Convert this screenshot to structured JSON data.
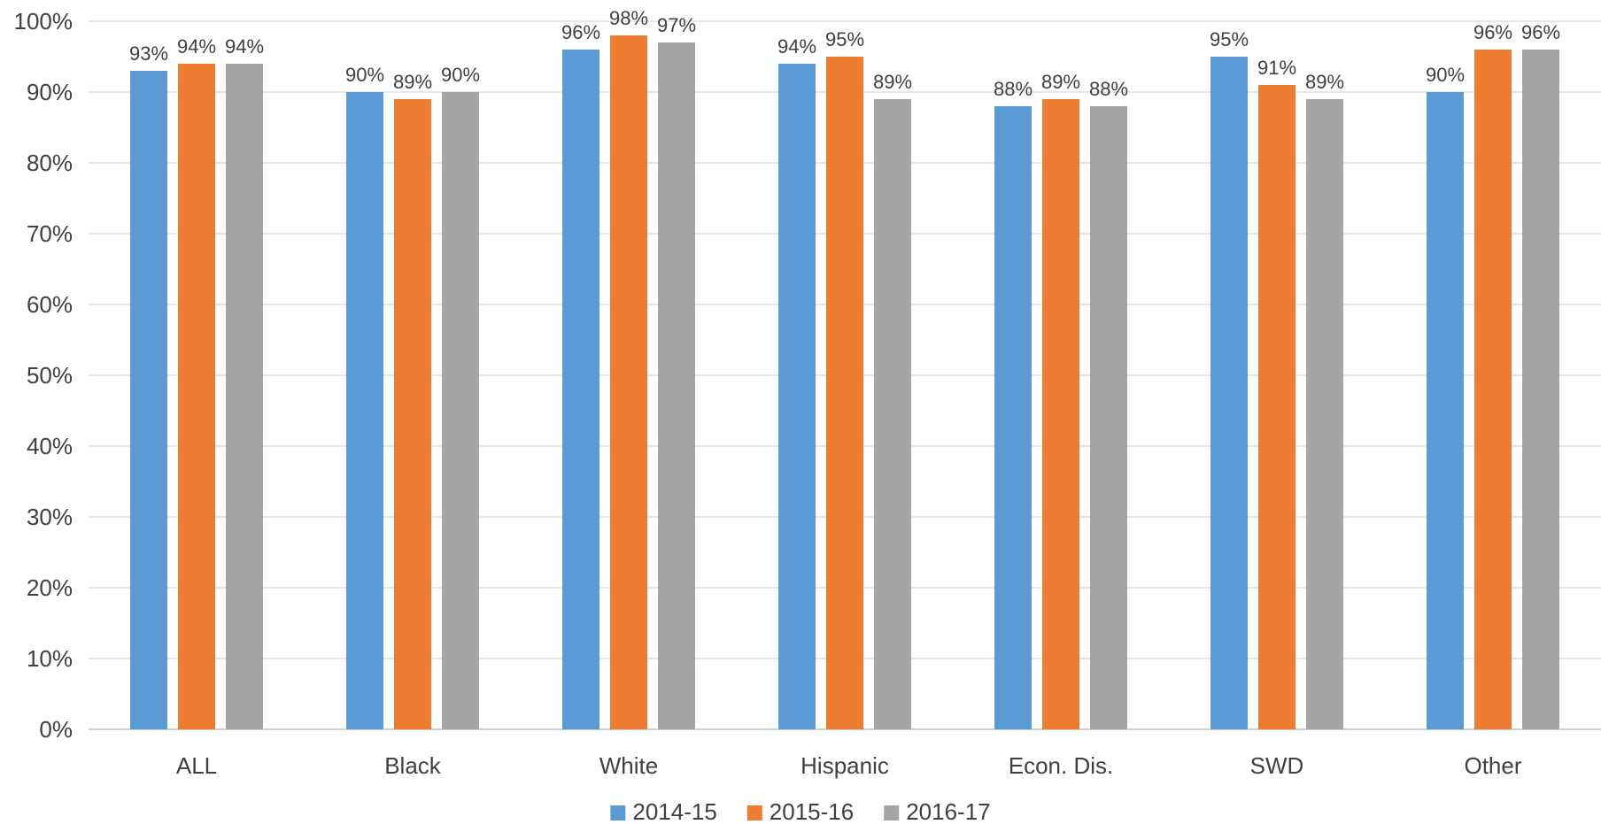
{
  "chart_data": {
    "type": "bar",
    "categories": [
      "ALL",
      "Black",
      "White",
      "Hispanic",
      "Econ. Dis.",
      "SWD",
      "Other"
    ],
    "series": [
      {
        "name": "2014-15",
        "color": "#5B9BD5",
        "values": [
          93,
          90,
          96,
          94,
          88,
          95,
          90
        ]
      },
      {
        "name": "2015-16",
        "color": "#ED7D31",
        "values": [
          94,
          89,
          98,
          95,
          89,
          91,
          96
        ]
      },
      {
        "name": "2016-17",
        "color": "#A5A5A5",
        "values": [
          94,
          90,
          97,
          89,
          88,
          89,
          96
        ]
      }
    ],
    "y_ticks": [
      "0%",
      "10%",
      "20%",
      "30%",
      "40%",
      "50%",
      "60%",
      "70%",
      "80%",
      "90%",
      "100%"
    ],
    "ylim": [
      0,
      100
    ],
    "value_suffix": "%",
    "grid": true,
    "legend_position": "bottom",
    "gridline_color": "#D9D9D9",
    "axis_color": "#BFBFBF",
    "text_color": "#404040"
  }
}
